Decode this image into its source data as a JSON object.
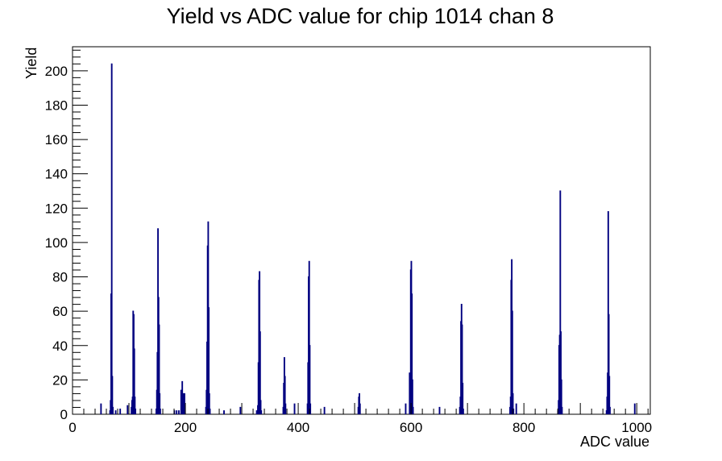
{
  "chart_data": {
    "type": "bar",
    "title": "Yield vs ADC value for chip 1014 chan 8",
    "xlabel": "ADC value",
    "ylabel": "Yield",
    "xlim": [
      0,
      1024
    ],
    "ylim": [
      0,
      214
    ],
    "x_ticks": [
      0,
      200,
      400,
      600,
      800,
      1000
    ],
    "y_ticks": [
      0,
      20,
      40,
      60,
      80,
      100,
      120,
      140,
      160,
      180,
      200
    ],
    "grid": false,
    "legend": "none",
    "line_color": "#000080",
    "bins": [
      {
        "x": 50,
        "y": 6
      },
      {
        "x": 66,
        "y": 2
      },
      {
        "x": 67,
        "y": 8
      },
      {
        "x": 68,
        "y": 70
      },
      {
        "x": 69,
        "y": 204
      },
      {
        "x": 70,
        "y": 22
      },
      {
        "x": 71,
        "y": 4
      },
      {
        "x": 76,
        "y": 2
      },
      {
        "x": 84,
        "y": 3
      },
      {
        "x": 97,
        "y": 5
      },
      {
        "x": 104,
        "y": 4
      },
      {
        "x": 105,
        "y": 8
      },
      {
        "x": 106,
        "y": 10
      },
      {
        "x": 107,
        "y": 60
      },
      {
        "x": 108,
        "y": 58
      },
      {
        "x": 109,
        "y": 38
      },
      {
        "x": 110,
        "y": 10
      },
      {
        "x": 111,
        "y": 3
      },
      {
        "x": 148,
        "y": 3
      },
      {
        "x": 149,
        "y": 14
      },
      {
        "x": 150,
        "y": 36
      },
      {
        "x": 151,
        "y": 108
      },
      {
        "x": 152,
        "y": 68
      },
      {
        "x": 153,
        "y": 52
      },
      {
        "x": 154,
        "y": 12
      },
      {
        "x": 155,
        "y": 3
      },
      {
        "x": 180,
        "y": 2
      },
      {
        "x": 184,
        "y": 2
      },
      {
        "x": 188,
        "y": 2
      },
      {
        "x": 192,
        "y": 14
      },
      {
        "x": 194,
        "y": 19
      },
      {
        "x": 196,
        "y": 12
      },
      {
        "x": 198,
        "y": 12
      },
      {
        "x": 236,
        "y": 4
      },
      {
        "x": 237,
        "y": 14
      },
      {
        "x": 238,
        "y": 42
      },
      {
        "x": 239,
        "y": 98
      },
      {
        "x": 240,
        "y": 112
      },
      {
        "x": 241,
        "y": 62
      },
      {
        "x": 242,
        "y": 12
      },
      {
        "x": 243,
        "y": 3
      },
      {
        "x": 268,
        "y": 2
      },
      {
        "x": 297,
        "y": 4
      },
      {
        "x": 326,
        "y": 2
      },
      {
        "x": 328,
        "y": 5
      },
      {
        "x": 329,
        "y": 30
      },
      {
        "x": 330,
        "y": 78
      },
      {
        "x": 331,
        "y": 83
      },
      {
        "x": 332,
        "y": 48
      },
      {
        "x": 333,
        "y": 8
      },
      {
        "x": 334,
        "y": 2
      },
      {
        "x": 373,
        "y": 4
      },
      {
        "x": 374,
        "y": 18
      },
      {
        "x": 375,
        "y": 33
      },
      {
        "x": 376,
        "y": 22
      },
      {
        "x": 377,
        "y": 6
      },
      {
        "x": 393,
        "y": 6
      },
      {
        "x": 416,
        "y": 6
      },
      {
        "x": 417,
        "y": 30
      },
      {
        "x": 418,
        "y": 80
      },
      {
        "x": 419,
        "y": 89
      },
      {
        "x": 420,
        "y": 40
      },
      {
        "x": 421,
        "y": 6
      },
      {
        "x": 446,
        "y": 4
      },
      {
        "x": 506,
        "y": 4
      },
      {
        "x": 507,
        "y": 10
      },
      {
        "x": 508,
        "y": 12
      },
      {
        "x": 509,
        "y": 6
      },
      {
        "x": 590,
        "y": 6
      },
      {
        "x": 597,
        "y": 24
      },
      {
        "x": 599,
        "y": 84
      },
      {
        "x": 600,
        "y": 89
      },
      {
        "x": 601,
        "y": 70
      },
      {
        "x": 602,
        "y": 20
      },
      {
        "x": 603,
        "y": 4
      },
      {
        "x": 650,
        "y": 4
      },
      {
        "x": 686,
        "y": 4
      },
      {
        "x": 687,
        "y": 10
      },
      {
        "x": 688,
        "y": 54
      },
      {
        "x": 689,
        "y": 64
      },
      {
        "x": 690,
        "y": 52
      },
      {
        "x": 691,
        "y": 18
      },
      {
        "x": 692,
        "y": 3
      },
      {
        "x": 775,
        "y": 4
      },
      {
        "x": 776,
        "y": 10
      },
      {
        "x": 777,
        "y": 78
      },
      {
        "x": 778,
        "y": 90
      },
      {
        "x": 779,
        "y": 60
      },
      {
        "x": 780,
        "y": 12
      },
      {
        "x": 781,
        "y": 3
      },
      {
        "x": 786,
        "y": 6
      },
      {
        "x": 860,
        "y": 2
      },
      {
        "x": 861,
        "y": 8
      },
      {
        "x": 862,
        "y": 40
      },
      {
        "x": 863,
        "y": 46
      },
      {
        "x": 864,
        "y": 130
      },
      {
        "x": 865,
        "y": 48
      },
      {
        "x": 866,
        "y": 20
      },
      {
        "x": 867,
        "y": 4
      },
      {
        "x": 946,
        "y": 2
      },
      {
        "x": 947,
        "y": 10
      },
      {
        "x": 948,
        "y": 24
      },
      {
        "x": 949,
        "y": 118
      },
      {
        "x": 950,
        "y": 58
      },
      {
        "x": 951,
        "y": 22
      },
      {
        "x": 952,
        "y": 4
      },
      {
        "x": 996,
        "y": 6
      }
    ]
  }
}
